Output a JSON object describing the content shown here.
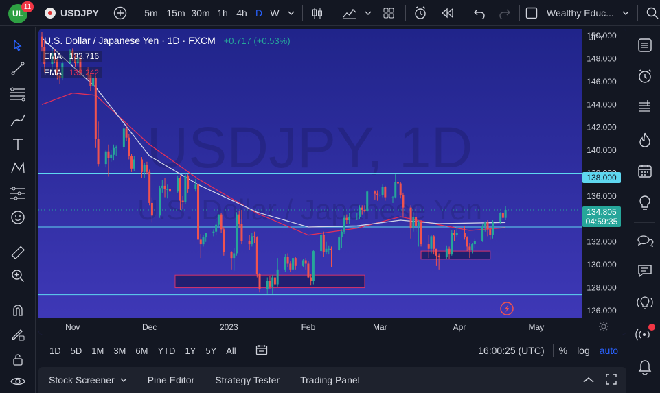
{
  "topbar": {
    "logo_text": "UL",
    "notification_count": "11",
    "symbol": "USDJPY",
    "intervals": [
      "5m",
      "15m",
      "30m",
      "1h",
      "4h",
      "D",
      "W"
    ],
    "active_interval": "D",
    "workspace": "Wealthy Educ..."
  },
  "chart": {
    "title": "U.S. Dollar / Japanese Yen · 1D · FXCM",
    "change": "+0.717 (+0.53%)",
    "watermark_symbol": "USDJPY, 1D",
    "watermark_name": "U.S. Dollar / Japanese Yen",
    "ema1_label": "EMA",
    "ema1_value": "133.716",
    "ema2_label": "EMA",
    "ema2_value": "133.242",
    "currency": "JPY",
    "price_label": "134.805",
    "countdown": "04:59:35",
    "level_label": "138.000",
    "y_ticks": [
      "150.000",
      "148.000",
      "146.000",
      "144.000",
      "142.000",
      "140.000",
      "138.000",
      "136.000",
      "134.000",
      "132.000",
      "130.000",
      "128.000",
      "126.000"
    ],
    "x_ticks": [
      "Nov",
      "Dec",
      "2023",
      "Feb",
      "Mar",
      "Apr",
      "May"
    ],
    "colors": {
      "up": "#26a69a",
      "down": "#ef5350",
      "bg_top": "#22258e",
      "bg_bottom": "#3f3ab8",
      "ema_fast": "#d0d3e8",
      "ema_slow": "#e0305a",
      "level": "#5fd7f0"
    }
  },
  "chart_data": {
    "type": "candlestick",
    "ylim": [
      125.4,
      150.6
    ],
    "horizontal_levels": [
      138.0,
      133.3,
      127.4
    ],
    "zones": [
      {
        "from_date": "2022-12-11",
        "to_date": "2023-02-23",
        "low": 128.0,
        "high": 129.1
      },
      {
        "from_date": "2023-03-17",
        "to_date": "2023-04-13",
        "low": 130.5,
        "high": 131.2
      }
    ],
    "candles": [
      [
        "2022-10-20",
        149.9,
        150.3,
        148.6,
        149.0
      ],
      [
        "2022-10-21",
        149.0,
        149.6,
        146.8,
        147.5
      ],
      [
        "2022-10-24",
        147.5,
        148.9,
        146.9,
        148.5
      ],
      [
        "2022-10-25",
        148.5,
        148.8,
        147.6,
        147.9
      ],
      [
        "2022-10-26",
        147.9,
        148.1,
        146.2,
        146.5
      ],
      [
        "2022-10-27",
        146.5,
        147.2,
        145.8,
        146.3
      ],
      [
        "2022-10-28",
        146.3,
        147.8,
        146.1,
        147.6
      ],
      [
        "2022-10-31",
        147.6,
        148.8,
        147.5,
        148.7
      ],
      [
        "2022-11-01",
        148.7,
        148.9,
        147.8,
        148.2
      ],
      [
        "2022-11-02",
        148.2,
        148.5,
        147.3,
        147.6
      ],
      [
        "2022-11-03",
        147.6,
        148.4,
        147.4,
        148.1
      ],
      [
        "2022-11-04",
        148.1,
        148.3,
        146.5,
        146.7
      ],
      [
        "2022-11-07",
        146.7,
        147.3,
        146.2,
        146.6
      ],
      [
        "2022-11-08",
        146.6,
        146.8,
        145.2,
        145.6
      ],
      [
        "2022-11-09",
        145.6,
        146.9,
        145.3,
        146.3
      ],
      [
        "2022-11-10",
        146.3,
        146.5,
        140.2,
        141.0
      ],
      [
        "2022-11-11",
        141.0,
        142.5,
        138.6,
        138.8
      ],
      [
        "2022-11-14",
        138.8,
        140.0,
        138.5,
        139.9
      ],
      [
        "2022-11-15",
        139.9,
        140.5,
        137.7,
        139.3
      ],
      [
        "2022-11-16",
        139.3,
        140.0,
        139.0,
        139.6
      ],
      [
        "2022-11-17",
        139.6,
        140.5,
        139.1,
        140.2
      ],
      [
        "2022-11-18",
        140.2,
        140.4,
        139.5,
        140.3
      ],
      [
        "2022-11-21",
        140.3,
        142.2,
        140.1,
        141.9
      ],
      [
        "2022-11-22",
        141.9,
        142.2,
        140.8,
        141.1
      ],
      [
        "2022-11-23",
        141.1,
        141.4,
        139.2,
        139.5
      ],
      [
        "2022-11-24",
        139.5,
        139.7,
        138.1,
        138.4
      ],
      [
        "2022-11-25",
        138.4,
        139.5,
        138.2,
        139.2
      ],
      [
        "2022-11-28",
        139.2,
        139.4,
        137.6,
        138.1
      ],
      [
        "2022-11-29",
        138.1,
        138.9,
        137.6,
        138.7
      ],
      [
        "2022-11-30",
        138.7,
        139.0,
        137.9,
        138.1
      ],
      [
        "2022-12-01",
        138.1,
        138.3,
        135.2,
        135.4
      ],
      [
        "2022-12-02",
        135.4,
        135.9,
        133.7,
        134.3
      ],
      [
        "2022-12-05",
        134.3,
        136.9,
        134.1,
        136.7
      ],
      [
        "2022-12-06",
        136.7,
        137.4,
        136.3,
        136.9
      ],
      [
        "2022-12-07",
        136.9,
        137.6,
        135.9,
        136.6
      ],
      [
        "2022-12-08",
        136.6,
        137.0,
        135.8,
        136.6
      ],
      [
        "2022-12-09",
        136.6,
        136.9,
        136.1,
        136.4
      ],
      [
        "2022-12-12",
        136.4,
        137.8,
        136.3,
        137.6
      ],
      [
        "2022-12-13",
        137.6,
        137.8,
        134.8,
        135.6
      ],
      [
        "2022-12-14",
        135.6,
        136.0,
        134.9,
        135.5
      ],
      [
        "2022-12-15",
        135.5,
        138.0,
        135.3,
        137.8
      ],
      [
        "2022-12-16",
        137.8,
        137.9,
        136.3,
        136.6
      ],
      [
        "2022-12-19",
        136.6,
        137.5,
        136.4,
        137.0
      ],
      [
        "2022-12-20",
        137.0,
        137.1,
        131.9,
        132.2
      ],
      [
        "2022-12-21",
        132.2,
        132.7,
        130.6,
        131.8
      ],
      [
        "2022-12-22",
        131.8,
        132.6,
        131.6,
        132.4
      ],
      [
        "2022-12-23",
        132.4,
        132.8,
        132.0,
        132.8
      ],
      [
        "2022-12-26",
        132.8,
        133.1,
        132.5,
        132.9
      ],
      [
        "2022-12-27",
        132.9,
        133.8,
        132.6,
        133.5
      ],
      [
        "2022-12-28",
        133.5,
        134.4,
        133.4,
        134.4
      ],
      [
        "2022-12-29",
        134.4,
        134.5,
        132.8,
        133.1
      ],
      [
        "2022-12-30",
        133.1,
        133.3,
        130.8,
        131.1
      ],
      [
        "2023-01-02",
        131.1,
        131.2,
        129.6,
        130.6
      ],
      [
        "2023-01-03",
        130.6,
        131.5,
        129.5,
        131.0
      ],
      [
        "2023-01-04",
        131.0,
        134.6,
        130.8,
        134.4
      ],
      [
        "2023-01-05",
        134.4,
        134.7,
        133.2,
        133.6
      ],
      [
        "2023-01-06",
        133.6,
        134.8,
        131.8,
        132.1
      ],
      [
        "2023-01-09",
        132.1,
        132.6,
        131.3,
        131.8
      ],
      [
        "2023-01-10",
        131.8,
        132.8,
        131.6,
        132.5
      ],
      [
        "2023-01-11",
        132.5,
        132.9,
        131.9,
        132.4
      ],
      [
        "2023-01-12",
        132.4,
        132.5,
        128.9,
        129.2
      ],
      [
        "2023-01-13",
        129.2,
        129.3,
        127.6,
        127.9
      ],
      [
        "2023-01-16",
        127.9,
        128.9,
        127.5,
        128.6
      ],
      [
        "2023-01-17",
        128.6,
        129.0,
        127.9,
        128.1
      ],
      [
        "2023-01-18",
        128.1,
        129.1,
        127.5,
        128.9
      ],
      [
        "2023-01-19",
        128.9,
        129.0,
        127.7,
        128.3
      ],
      [
        "2023-01-20",
        128.3,
        130.6,
        128.1,
        129.6
      ],
      [
        "2023-01-23",
        129.6,
        130.9,
        129.4,
        130.7
      ],
      [
        "2023-01-24",
        130.7,
        131.0,
        129.8,
        130.1
      ],
      [
        "2023-01-25",
        130.1,
        130.3,
        129.4,
        129.6
      ],
      [
        "2023-01-26",
        129.6,
        130.8,
        129.2,
        130.6
      ],
      [
        "2023-01-27",
        130.6,
        130.7,
        129.6,
        129.9
      ],
      [
        "2023-01-30",
        129.9,
        130.5,
        129.8,
        130.4
      ],
      [
        "2023-01-31",
        130.4,
        130.6,
        129.6,
        130.1
      ],
      [
        "2023-02-01",
        130.1,
        130.3,
        128.8,
        128.9
      ],
      [
        "2023-02-02",
        128.9,
        129.2,
        128.2,
        128.6
      ],
      [
        "2023-02-03",
        128.6,
        131.3,
        128.3,
        131.2
      ],
      [
        "2023-02-06",
        131.2,
        132.9,
        131.0,
        132.6
      ],
      [
        "2023-02-07",
        132.6,
        132.9,
        130.7,
        131.1
      ],
      [
        "2023-02-08",
        131.1,
        132.0,
        130.9,
        131.4
      ],
      [
        "2023-02-09",
        131.4,
        131.7,
        130.9,
        131.4
      ],
      [
        "2023-02-10",
        131.4,
        131.6,
        129.8,
        131.3
      ],
      [
        "2023-02-13",
        131.3,
        132.6,
        131.2,
        132.4
      ],
      [
        "2023-02-14",
        132.4,
        133.1,
        131.5,
        132.9
      ],
      [
        "2023-02-15",
        132.9,
        134.3,
        132.7,
        134.1
      ],
      [
        "2023-02-16",
        134.1,
        134.4,
        133.6,
        133.9
      ],
      [
        "2023-02-17",
        133.9,
        134.5,
        133.6,
        134.2
      ],
      [
        "2023-02-20",
        134.2,
        134.5,
        133.9,
        134.2
      ],
      [
        "2023-02-21",
        134.2,
        135.2,
        134.0,
        135.0
      ],
      [
        "2023-02-22",
        135.0,
        135.2,
        134.4,
        134.8
      ],
      [
        "2023-02-23",
        134.8,
        135.2,
        134.6,
        134.7
      ],
      [
        "2023-02-24",
        134.7,
        136.5,
        134.6,
        136.4
      ],
      [
        "2023-02-27",
        136.4,
        136.5,
        135.7,
        136.2
      ],
      [
        "2023-02-28",
        136.2,
        136.5,
        135.6,
        136.1
      ],
      [
        "2023-03-01",
        136.1,
        136.4,
        135.9,
        136.1
      ],
      [
        "2023-03-02",
        136.1,
        137.0,
        135.9,
        136.8
      ],
      [
        "2023-03-03",
        136.8,
        136.9,
        135.6,
        135.9
      ],
      [
        "2023-03-06",
        135.9,
        136.0,
        135.4,
        135.9
      ],
      [
        "2023-03-07",
        135.9,
        137.9,
        135.8,
        137.2
      ],
      [
        "2023-03-08",
        137.2,
        137.5,
        136.8,
        137.1
      ],
      [
        "2023-03-09",
        137.1,
        137.2,
        135.8,
        136.1
      ],
      [
        "2023-03-10",
        136.1,
        136.3,
        134.2,
        135.0
      ],
      [
        "2023-03-13",
        135.0,
        135.2,
        132.3,
        133.2
      ],
      [
        "2023-03-14",
        133.2,
        134.6,
        132.9,
        134.2
      ],
      [
        "2023-03-15",
        134.2,
        135.1,
        132.9,
        133.4
      ],
      [
        "2023-03-16",
        133.4,
        133.9,
        131.6,
        133.7
      ],
      [
        "2023-03-17",
        133.7,
        133.9,
        131.6,
        131.8
      ],
      [
        "2023-03-20",
        131.8,
        132.6,
        130.6,
        131.4
      ],
      [
        "2023-03-21",
        131.4,
        132.6,
        131.0,
        132.5
      ],
      [
        "2023-03-22",
        132.5,
        132.6,
        130.9,
        131.4
      ],
      [
        "2023-03-23",
        131.4,
        131.4,
        129.9,
        130.8
      ],
      [
        "2023-03-24",
        130.8,
        131.0,
        129.6,
        130.7
      ],
      [
        "2023-03-27",
        130.7,
        131.7,
        130.5,
        131.4
      ],
      [
        "2023-03-28",
        131.4,
        131.6,
        130.5,
        130.9
      ],
      [
        "2023-03-29",
        130.9,
        133.0,
        130.8,
        132.8
      ],
      [
        "2023-03-30",
        132.8,
        133.0,
        132.1,
        132.6
      ],
      [
        "2023-03-31",
        132.6,
        133.3,
        132.4,
        132.8
      ],
      [
        "2023-04-03",
        132.8,
        133.4,
        132.2,
        132.4
      ],
      [
        "2023-04-04",
        132.4,
        132.5,
        131.2,
        131.6
      ],
      [
        "2023-04-05",
        131.6,
        131.9,
        130.6,
        131.3
      ],
      [
        "2023-04-06",
        131.3,
        131.9,
        131.0,
        131.8
      ],
      [
        "2023-04-07",
        131.8,
        132.3,
        131.5,
        132.1
      ],
      [
        "2023-04-10",
        132.1,
        133.6,
        132.0,
        133.4
      ],
      [
        "2023-04-11",
        133.4,
        133.8,
        132.9,
        133.7
      ],
      [
        "2023-04-12",
        133.7,
        133.9,
        132.5,
        133.1
      ],
      [
        "2023-04-13",
        133.1,
        133.4,
        132.2,
        132.6
      ],
      [
        "2023-04-14",
        132.6,
        133.9,
        132.3,
        133.7
      ],
      [
        "2023-04-17",
        133.7,
        134.6,
        133.6,
        134.5
      ],
      [
        "2023-04-18",
        134.5,
        134.6,
        133.9,
        134.1
      ],
      [
        "2023-04-19",
        134.1,
        135.1,
        133.9,
        134.8
      ]
    ],
    "ema_fast_points": [
      [
        "2022-10-20",
        149.8
      ],
      [
        "2022-11-10",
        145.5
      ],
      [
        "2022-12-01",
        139.5
      ],
      [
        "2022-12-20",
        137.0
      ],
      [
        "2023-01-12",
        134.6
      ],
      [
        "2023-02-01",
        133.3
      ],
      [
        "2023-02-20",
        133.4
      ],
      [
        "2023-03-09",
        133.9
      ],
      [
        "2023-03-24",
        133.6
      ],
      [
        "2023-04-19",
        133.7
      ]
    ],
    "ema_slow_points": [
      [
        "2022-10-20",
        144.0
      ],
      [
        "2022-11-01",
        145.0
      ],
      [
        "2022-11-10",
        144.8
      ],
      [
        "2022-12-01",
        140.5
      ],
      [
        "2022-12-20",
        137.5
      ],
      [
        "2023-01-12",
        134.5
      ],
      [
        "2023-02-01",
        132.6
      ],
      [
        "2023-02-20",
        133.2
      ],
      [
        "2023-03-09",
        134.2
      ],
      [
        "2023-03-24",
        133.5
      ],
      [
        "2023-04-05",
        133.0
      ],
      [
        "2023-04-19",
        133.24
      ]
    ]
  },
  "range_bar": {
    "ranges": [
      "1D",
      "5D",
      "1M",
      "3M",
      "6M",
      "YTD",
      "1Y",
      "5Y",
      "All"
    ],
    "clock": "16:00:25 (UTC)",
    "percent": "%",
    "log": "log",
    "auto": "auto"
  },
  "bottom_panel": {
    "tabs": [
      "Stock Screener",
      "Pine Editor",
      "Strategy Tester",
      "Trading Panel"
    ]
  }
}
